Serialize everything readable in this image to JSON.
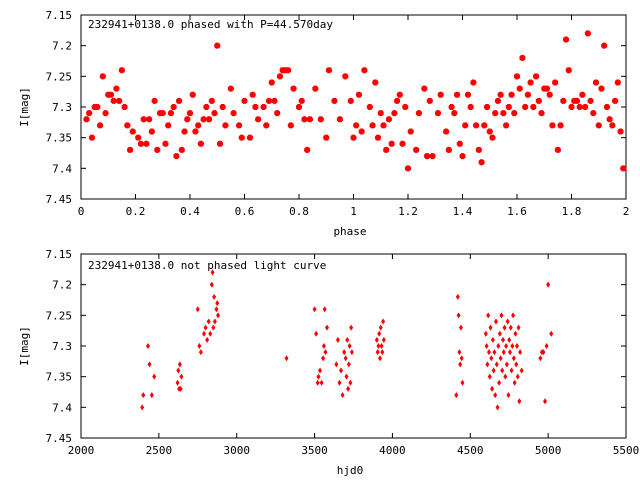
{
  "chart_data": [
    {
      "type": "scatter",
      "title": "232941+0138.0 phased with P=44.570day",
      "xlabel": "phase",
      "ylabel": "I[mag]",
      "xlim": [
        0,
        2
      ],
      "ylim": [
        7.15,
        7.45
      ],
      "y_inverted": true,
      "xticks": [
        0,
        0.2,
        0.4,
        0.6,
        0.8,
        1,
        1.2,
        1.4,
        1.6,
        1.8,
        2
      ],
      "xtick_labels": [
        "0",
        "0.2",
        "0.4",
        "0.6",
        "0.8",
        "1",
        "1.2",
        "1.4",
        "1.6",
        "1.8",
        "2"
      ],
      "yticks": [
        7.15,
        7.2,
        7.25,
        7.3,
        7.35,
        7.4,
        7.45
      ],
      "ytick_labels": [
        "7.15",
        "7.2",
        "7.25",
        "7.3",
        "7.35",
        "7.4",
        "7.45"
      ],
      "marker_color": "#ff0000",
      "marker": "filled-octagon",
      "points": [
        [
          0.02,
          7.32
        ],
        [
          0.03,
          7.31
        ],
        [
          0.04,
          7.35
        ],
        [
          0.05,
          7.3
        ],
        [
          0.06,
          7.3
        ],
        [
          0.07,
          7.33
        ],
        [
          0.08,
          7.25
        ],
        [
          0.09,
          7.31
        ],
        [
          0.1,
          7.28
        ],
        [
          0.11,
          7.28
        ],
        [
          0.12,
          7.29
        ],
        [
          0.13,
          7.27
        ],
        [
          0.14,
          7.29
        ],
        [
          0.15,
          7.24
        ],
        [
          0.16,
          7.3
        ],
        [
          0.17,
          7.33
        ],
        [
          0.18,
          7.37
        ],
        [
          0.19,
          7.34
        ],
        [
          0.21,
          7.35
        ],
        [
          0.22,
          7.36
        ],
        [
          0.23,
          7.32
        ],
        [
          0.24,
          7.36
        ],
        [
          0.25,
          7.32
        ],
        [
          0.26,
          7.34
        ],
        [
          0.27,
          7.29
        ],
        [
          0.28,
          7.37
        ],
        [
          0.29,
          7.31
        ],
        [
          0.3,
          7.31
        ],
        [
          0.31,
          7.36
        ],
        [
          0.32,
          7.33
        ],
        [
          0.33,
          7.31
        ],
        [
          0.34,
          7.3
        ],
        [
          0.35,
          7.38
        ],
        [
          0.36,
          7.29
        ],
        [
          0.37,
          7.37
        ],
        [
          0.38,
          7.34
        ],
        [
          0.39,
          7.32
        ],
        [
          0.4,
          7.31
        ],
        [
          0.41,
          7.28
        ],
        [
          0.42,
          7.34
        ],
        [
          0.43,
          7.33
        ],
        [
          0.44,
          7.36
        ],
        [
          0.45,
          7.32
        ],
        [
          0.46,
          7.3
        ],
        [
          0.47,
          7.32
        ],
        [
          0.48,
          7.29
        ],
        [
          0.49,
          7.31
        ],
        [
          0.5,
          7.2
        ],
        [
          0.51,
          7.36
        ],
        [
          0.52,
          7.3
        ],
        [
          0.53,
          7.33
        ],
        [
          0.55,
          7.27
        ],
        [
          0.56,
          7.31
        ],
        [
          0.58,
          7.33
        ],
        [
          0.59,
          7.35
        ],
        [
          0.6,
          7.29
        ],
        [
          0.62,
          7.35
        ],
        [
          0.63,
          7.28
        ],
        [
          0.64,
          7.3
        ],
        [
          0.65,
          7.32
        ],
        [
          0.67,
          7.3
        ],
        [
          0.68,
          7.33
        ],
        [
          0.69,
          7.29
        ],
        [
          0.7,
          7.26
        ],
        [
          0.71,
          7.29
        ],
        [
          0.72,
          7.31
        ],
        [
          0.73,
          7.25
        ],
        [
          0.74,
          7.24
        ],
        [
          0.75,
          7.24
        ],
        [
          0.76,
          7.24
        ],
        [
          0.77,
          7.33
        ],
        [
          0.78,
          7.27
        ],
        [
          0.8,
          7.3
        ],
        [
          0.81,
          7.29
        ],
        [
          0.82,
          7.32
        ],
        [
          0.83,
          7.37
        ],
        [
          0.84,
          7.32
        ],
        [
          0.86,
          7.27
        ],
        [
          0.88,
          7.32
        ],
        [
          0.9,
          7.35
        ],
        [
          0.91,
          7.24
        ],
        [
          0.93,
          7.29
        ],
        [
          0.95,
          7.32
        ],
        [
          0.97,
          7.25
        ],
        [
          0.99,
          7.29
        ],
        [
          1.0,
          7.35
        ],
        [
          1.01,
          7.33
        ],
        [
          1.02,
          7.28
        ],
        [
          1.03,
          7.34
        ],
        [
          1.04,
          7.24
        ],
        [
          1.06,
          7.3
        ],
        [
          1.07,
          7.33
        ],
        [
          1.08,
          7.26
        ],
        [
          1.09,
          7.35
        ],
        [
          1.1,
          7.31
        ],
        [
          1.11,
          7.33
        ],
        [
          1.12,
          7.37
        ],
        [
          1.13,
          7.32
        ],
        [
          1.14,
          7.36
        ],
        [
          1.15,
          7.31
        ],
        [
          1.16,
          7.29
        ],
        [
          1.17,
          7.28
        ],
        [
          1.18,
          7.36
        ],
        [
          1.19,
          7.3
        ],
        [
          1.2,
          7.4
        ],
        [
          1.21,
          7.34
        ],
        [
          1.23,
          7.37
        ],
        [
          1.24,
          7.31
        ],
        [
          1.26,
          7.27
        ],
        [
          1.27,
          7.38
        ],
        [
          1.28,
          7.29
        ],
        [
          1.29,
          7.38
        ],
        [
          1.31,
          7.31
        ],
        [
          1.32,
          7.28
        ],
        [
          1.34,
          7.34
        ],
        [
          1.35,
          7.37
        ],
        [
          1.36,
          7.3
        ],
        [
          1.37,
          7.31
        ],
        [
          1.38,
          7.28
        ],
        [
          1.39,
          7.36
        ],
        [
          1.4,
          7.38
        ],
        [
          1.41,
          7.33
        ],
        [
          1.42,
          7.28
        ],
        [
          1.43,
          7.3
        ],
        [
          1.44,
          7.26
        ],
        [
          1.45,
          7.33
        ],
        [
          1.46,
          7.37
        ],
        [
          1.47,
          7.39
        ],
        [
          1.48,
          7.33
        ],
        [
          1.49,
          7.3
        ],
        [
          1.5,
          7.34
        ],
        [
          1.51,
          7.35
        ],
        [
          1.52,
          7.31
        ],
        [
          1.53,
          7.29
        ],
        [
          1.54,
          7.28
        ],
        [
          1.55,
          7.31
        ],
        [
          1.56,
          7.33
        ],
        [
          1.57,
          7.3
        ],
        [
          1.58,
          7.28
        ],
        [
          1.59,
          7.31
        ],
        [
          1.6,
          7.25
        ],
        [
          1.61,
          7.27
        ],
        [
          1.62,
          7.22
        ],
        [
          1.63,
          7.3
        ],
        [
          1.64,
          7.28
        ],
        [
          1.65,
          7.26
        ],
        [
          1.66,
          7.3
        ],
        [
          1.67,
          7.25
        ],
        [
          1.68,
          7.29
        ],
        [
          1.69,
          7.31
        ],
        [
          1.7,
          7.27
        ],
        [
          1.71,
          7.27
        ],
        [
          1.72,
          7.28
        ],
        [
          1.73,
          7.33
        ],
        [
          1.74,
          7.26
        ],
        [
          1.75,
          7.37
        ],
        [
          1.76,
          7.33
        ],
        [
          1.77,
          7.29
        ],
        [
          1.78,
          7.19
        ],
        [
          1.79,
          7.24
        ],
        [
          1.8,
          7.3
        ],
        [
          1.81,
          7.29
        ],
        [
          1.82,
          7.29
        ],
        [
          1.83,
          7.3
        ],
        [
          1.84,
          7.28
        ],
        [
          1.85,
          7.3
        ],
        [
          1.86,
          7.18
        ],
        [
          1.87,
          7.29
        ],
        [
          1.88,
          7.31
        ],
        [
          1.89,
          7.26
        ],
        [
          1.9,
          7.33
        ],
        [
          1.91,
          7.27
        ],
        [
          1.92,
          7.2
        ],
        [
          1.93,
          7.3
        ],
        [
          1.94,
          7.32
        ],
        [
          1.95,
          7.33
        ],
        [
          1.96,
          7.29
        ],
        [
          1.97,
          7.26
        ],
        [
          1.98,
          7.34
        ],
        [
          1.99,
          7.4
        ]
      ]
    },
    {
      "type": "scatter",
      "title": "232941+0138.0 not phased light curve",
      "xlabel": "hjd0",
      "ylabel": "I[mag]",
      "xlim": [
        2000,
        5500
      ],
      "ylim": [
        7.15,
        7.45
      ],
      "y_inverted": true,
      "xticks": [
        2000,
        2500,
        3000,
        3500,
        4000,
        4500,
        5000,
        5500
      ],
      "xtick_labels": [
        "2000",
        "2500",
        "3000",
        "3500",
        "4000",
        "4500",
        "5000",
        "5500"
      ],
      "yticks": [
        7.15,
        7.2,
        7.25,
        7.3,
        7.35,
        7.4,
        7.45
      ],
      "ytick_labels": [
        "7.15",
        "7.2",
        "7.25",
        "7.3",
        "7.35",
        "7.4",
        "7.45"
      ],
      "marker_color": "#ff0000",
      "marker": "filled-diamond",
      "points": [
        [
          2393,
          7.4
        ],
        [
          2400,
          7.38
        ],
        [
          2430,
          7.3
        ],
        [
          2440,
          7.33
        ],
        [
          2455,
          7.38
        ],
        [
          2470,
          7.35
        ],
        [
          2620,
          7.36
        ],
        [
          2625,
          7.34
        ],
        [
          2630,
          7.37
        ],
        [
          2635,
          7.33
        ],
        [
          2640,
          7.37
        ],
        [
          2645,
          7.35
        ],
        [
          2750,
          7.24
        ],
        [
          2760,
          7.3
        ],
        [
          2770,
          7.31
        ],
        [
          2790,
          7.28
        ],
        [
          2800,
          7.27
        ],
        [
          2810,
          7.29
        ],
        [
          2820,
          7.26
        ],
        [
          2830,
          7.28
        ],
        [
          2840,
          7.2
        ],
        [
          2845,
          7.18
        ],
        [
          2850,
          7.27
        ],
        [
          2855,
          7.22
        ],
        [
          2860,
          7.26
        ],
        [
          2870,
          7.24
        ],
        [
          2875,
          7.23
        ],
        [
          2880,
          7.25
        ],
        [
          3320,
          7.32
        ],
        [
          3500,
          7.24
        ],
        [
          3510,
          7.28
        ],
        [
          3520,
          7.36
        ],
        [
          3525,
          7.35
        ],
        [
          3535,
          7.34
        ],
        [
          3545,
          7.36
        ],
        [
          3555,
          7.32
        ],
        [
          3560,
          7.3
        ],
        [
          3565,
          7.24
        ],
        [
          3570,
          7.31
        ],
        [
          3580,
          7.27
        ],
        [
          3640,
          7.33
        ],
        [
          3650,
          7.29
        ],
        [
          3660,
          7.36
        ],
        [
          3670,
          7.34
        ],
        [
          3680,
          7.38
        ],
        [
          3690,
          7.31
        ],
        [
          3700,
          7.32
        ],
        [
          3705,
          7.35
        ],
        [
          3710,
          7.29
        ],
        [
          3715,
          7.37
        ],
        [
          3720,
          7.33
        ],
        [
          3725,
          7.3
        ],
        [
          3730,
          7.36
        ],
        [
          3735,
          7.27
        ],
        [
          3740,
          7.31
        ],
        [
          3900,
          7.29
        ],
        [
          3905,
          7.31
        ],
        [
          3910,
          7.3
        ],
        [
          3915,
          7.28
        ],
        [
          3920,
          7.32
        ],
        [
          3925,
          7.27
        ],
        [
          3930,
          7.3
        ],
        [
          3935,
          7.31
        ],
        [
          3940,
          7.26
        ],
        [
          3945,
          7.29
        ],
        [
          4410,
          7.38
        ],
        [
          4420,
          7.22
        ],
        [
          4425,
          7.25
        ],
        [
          4430,
          7.31
        ],
        [
          4435,
          7.33
        ],
        [
          4440,
          7.27
        ],
        [
          4445,
          7.32
        ],
        [
          4450,
          7.36
        ],
        [
          4600,
          7.28
        ],
        [
          4605,
          7.3
        ],
        [
          4610,
          7.33
        ],
        [
          4615,
          7.25
        ],
        [
          4620,
          7.31
        ],
        [
          4625,
          7.35
        ],
        [
          4630,
          7.27
        ],
        [
          4635,
          7.32
        ],
        [
          4640,
          7.37
        ],
        [
          4645,
          7.29
        ],
        [
          4650,
          7.34
        ],
        [
          4655,
          7.31
        ],
        [
          4660,
          7.38
        ],
        [
          4665,
          7.26
        ],
        [
          4670,
          7.33
        ],
        [
          4675,
          7.4
        ],
        [
          4680,
          7.3
        ],
        [
          4685,
          7.36
        ],
        [
          4690,
          7.28
        ],
        [
          4695,
          7.32
        ],
        [
          4700,
          7.25
        ],
        [
          4705,
          7.34
        ],
        [
          4710,
          7.29
        ],
        [
          4715,
          7.31
        ],
        [
          4720,
          7.27
        ],
        [
          4725,
          7.35
        ],
        [
          4730,
          7.3
        ],
        [
          4735,
          7.33
        ],
        [
          4740,
          7.26
        ],
        [
          4745,
          7.38
        ],
        [
          4750,
          7.29
        ],
        [
          4755,
          7.31
        ],
        [
          4760,
          7.27
        ],
        [
          4765,
          7.34
        ],
        [
          4770,
          7.3
        ],
        [
          4775,
          7.25
        ],
        [
          4780,
          7.32
        ],
        [
          4785,
          7.36
        ],
        [
          4790,
          7.28
        ],
        [
          4795,
          7.33
        ],
        [
          4800,
          7.3
        ],
        [
          4805,
          7.35
        ],
        [
          4810,
          7.27
        ],
        [
          4815,
          7.39
        ],
        [
          4820,
          7.31
        ],
        [
          4830,
          7.34
        ],
        [
          4950,
          7.32
        ],
        [
          4960,
          7.31
        ],
        [
          4970,
          7.31
        ],
        [
          4980,
          7.39
        ],
        [
          4990,
          7.3
        ],
        [
          5000,
          7.2
        ],
        [
          5020,
          7.28
        ]
      ]
    }
  ]
}
